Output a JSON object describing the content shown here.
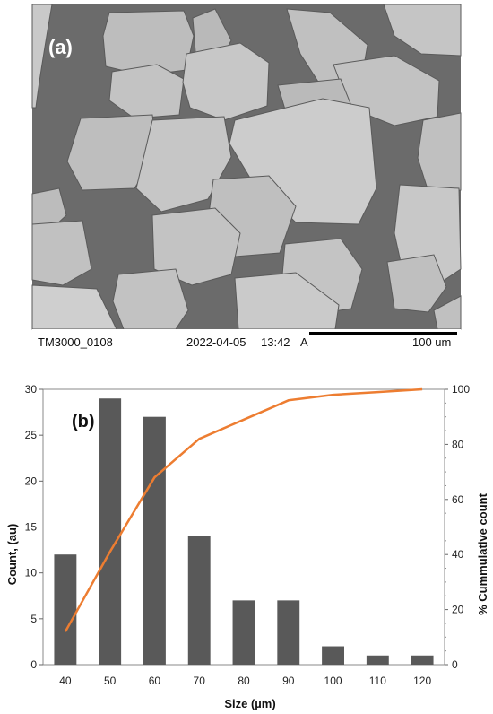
{
  "micrograph": {
    "panel_label": "(a)",
    "instrument": "TM3000_0108",
    "date": "2022-04-05",
    "time": "13:42",
    "mode": "A",
    "scale_label": "100 um"
  },
  "chart_data": {
    "type": "bar",
    "panel_label": "(b)",
    "categories": [
      "40",
      "50",
      "60",
      "70",
      "80",
      "90",
      "100",
      "110",
      "120"
    ],
    "series": [
      {
        "values": [
          12,
          29,
          27,
          14,
          7,
          7,
          2,
          1,
          1
        ],
        "color": "#595959",
        "kind": "bar",
        "axis": "left"
      },
      {
        "values": [
          12,
          41,
          68,
          82,
          89,
          96,
          98,
          99,
          100
        ],
        "color": "#ED7D31",
        "kind": "line",
        "axis": "right"
      }
    ],
    "xlabel": "Size (µm)",
    "ylabel": "Count, (au)",
    "y2label": "% Cummulative count",
    "ylim": [
      0,
      30
    ],
    "y2lim": [
      0,
      100
    ],
    "yticks": [
      "0",
      "5",
      "10",
      "15",
      "20",
      "25",
      "30"
    ],
    "y2ticks": [
      "0",
      "20",
      "40",
      "60",
      "80",
      "100"
    ],
    "grid": false,
    "legend": "none"
  }
}
